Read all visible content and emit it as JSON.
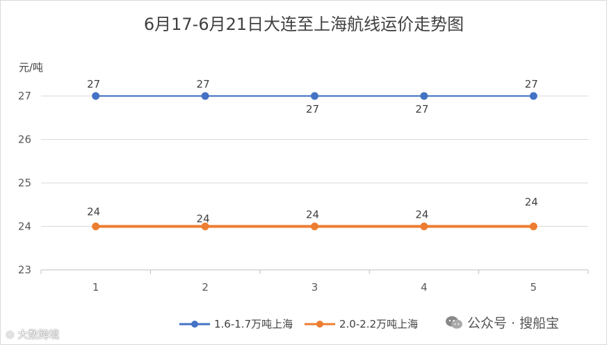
{
  "chart_data": {
    "type": "line",
    "title": "6月17-6月21日大连至上海航线运价走势图",
    "ylabel": "元/吨",
    "xlabel": "",
    "categories": [
      "1",
      "2",
      "3",
      "4",
      "5"
    ],
    "ylim": [
      23,
      27
    ],
    "yticks": [
      "23",
      "24",
      "25",
      "26",
      "27"
    ],
    "grid": true,
    "legend": "bottom",
    "series": [
      {
        "name": "1.6-1.7万吨上海",
        "values": [
          27,
          27,
          27,
          27,
          27
        ],
        "color": "#4472c4"
      },
      {
        "name": "2.0-2.2万吨上海",
        "values": [
          24,
          24,
          24,
          24,
          24
        ],
        "color": "#ed7d31"
      }
    ]
  },
  "watermarks": {
    "left": "大数跨境",
    "right": "公众号 · 搜船宝"
  },
  "icons": {
    "watermark_left": "wechat-channels-icon",
    "watermark_right": "wechat-icon"
  }
}
